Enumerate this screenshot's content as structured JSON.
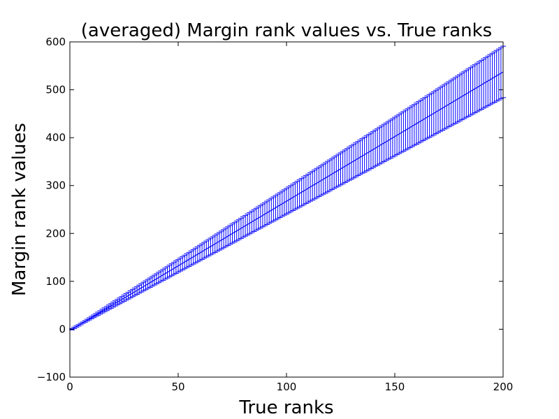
{
  "chart_data": {
    "type": "line",
    "title": "(averaged) Margin rank values vs. True ranks",
    "xlabel": "True ranks",
    "ylabel": "Margin rank values",
    "xlim": [
      0,
      200
    ],
    "ylim": [
      -100,
      600
    ],
    "xticks": [
      0,
      50,
      100,
      150,
      200
    ],
    "yticks": [
      -100,
      0,
      100,
      200,
      300,
      400,
      500,
      600
    ],
    "grid": false,
    "legend": "none",
    "series": [
      {
        "color": "#0000ff",
        "x_start": 1,
        "x_end": 200,
        "x_step": 1,
        "y_slope": 2.7,
        "y_intercept": -2.7,
        "err_fraction": 0.1,
        "err_min": 1.5
      }
    ]
  }
}
